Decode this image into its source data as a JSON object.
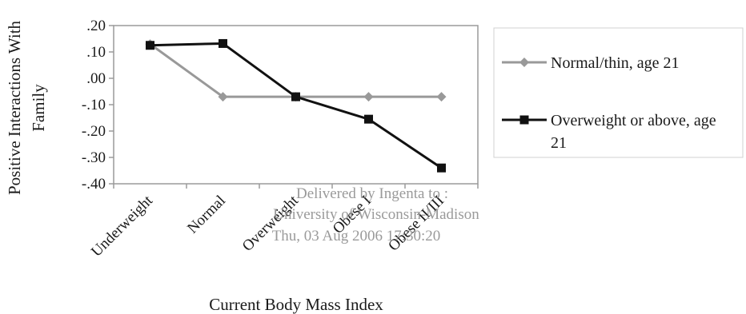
{
  "chart_data": {
    "type": "line",
    "categories": [
      "Underweight",
      "Normal",
      "Overweight",
      "Obese I",
      "Obese II/III"
    ],
    "series": [
      {
        "name": "Normal/thin, age 21",
        "values": [
          0.13,
          -0.07,
          -0.07,
          -0.07,
          -0.07
        ],
        "color": "#999999",
        "marker": "diamond"
      },
      {
        "name": "Overweight or above, age 21",
        "values": [
          0.125,
          0.132,
          -0.07,
          -0.155,
          -0.34
        ],
        "color": "#111111",
        "marker": "square"
      }
    ],
    "y_ticks": [
      ".20",
      ".10",
      ".00",
      "-.10",
      "-.20",
      "-.30",
      "-.40"
    ],
    "ylim": [
      -0.4,
      0.2
    ],
    "xlabel": "Current Body Mass Index",
    "ylabel_lines": [
      "Positive Interactions With",
      "Family"
    ],
    "legend_position": "right",
    "grid": false,
    "legend_lines": [
      [
        "Normal/thin, age 21"
      ],
      [
        "Overweight or above, age",
        "21"
      ]
    ]
  },
  "watermark": {
    "lines": [
      "Delivered by Ingenta to :",
      "University of Wisconsin-Madison",
      "Thu, 03 Aug 2006 17:30:20"
    ]
  }
}
